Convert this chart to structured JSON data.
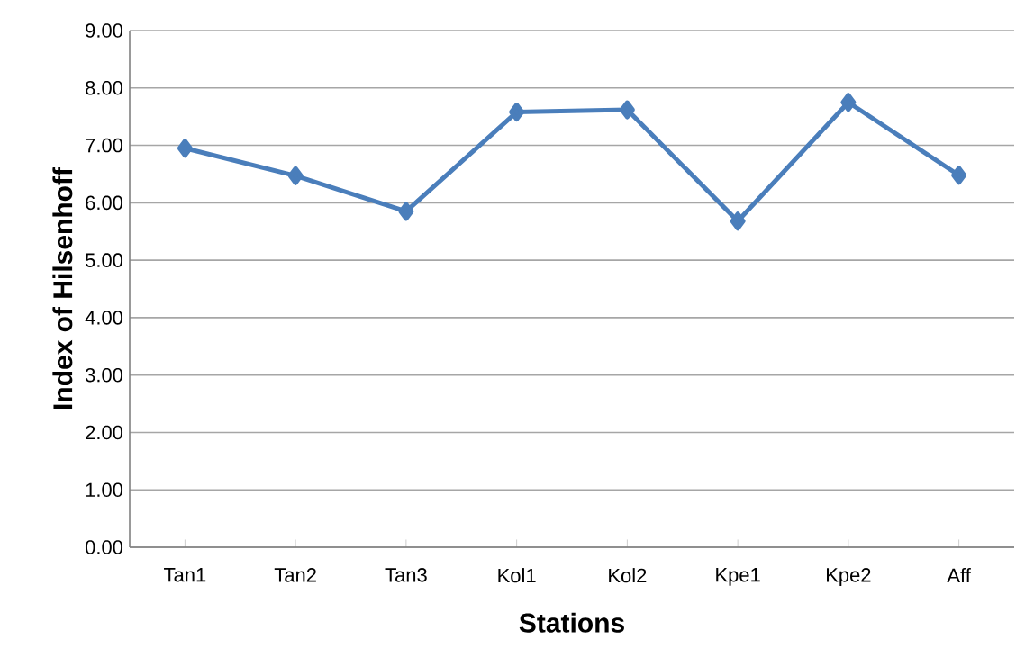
{
  "chart_data": {
    "type": "line",
    "xlabel": "Stations",
    "ylabel": "Index of Hilsenhoff",
    "categories": [
      "Tan1",
      "Tan2",
      "Tan3",
      "Kol1",
      "Kol2",
      "Kpe1",
      "Kpe2",
      "Aff"
    ],
    "values": [
      6.95,
      6.47,
      5.85,
      7.58,
      7.62,
      5.68,
      7.75,
      6.48
    ],
    "color": "#4a7ebb",
    "marker": "diamond",
    "line_style": "solid",
    "grid": "y",
    "ylim": [
      0,
      9
    ],
    "yticks": [
      {
        "value": 0,
        "label": "0.00"
      },
      {
        "value": 1,
        "label": "1.00"
      },
      {
        "value": 2,
        "label": "2.00"
      },
      {
        "value": 3,
        "label": "3.00"
      },
      {
        "value": 4,
        "label": "4.00"
      },
      {
        "value": 5,
        "label": "5.00"
      },
      {
        "value": 6,
        "label": "6.00"
      },
      {
        "value": 7,
        "label": "7.00"
      },
      {
        "value": 8,
        "label": "8.00"
      },
      {
        "value": 9,
        "label": "9.00"
      }
    ]
  }
}
